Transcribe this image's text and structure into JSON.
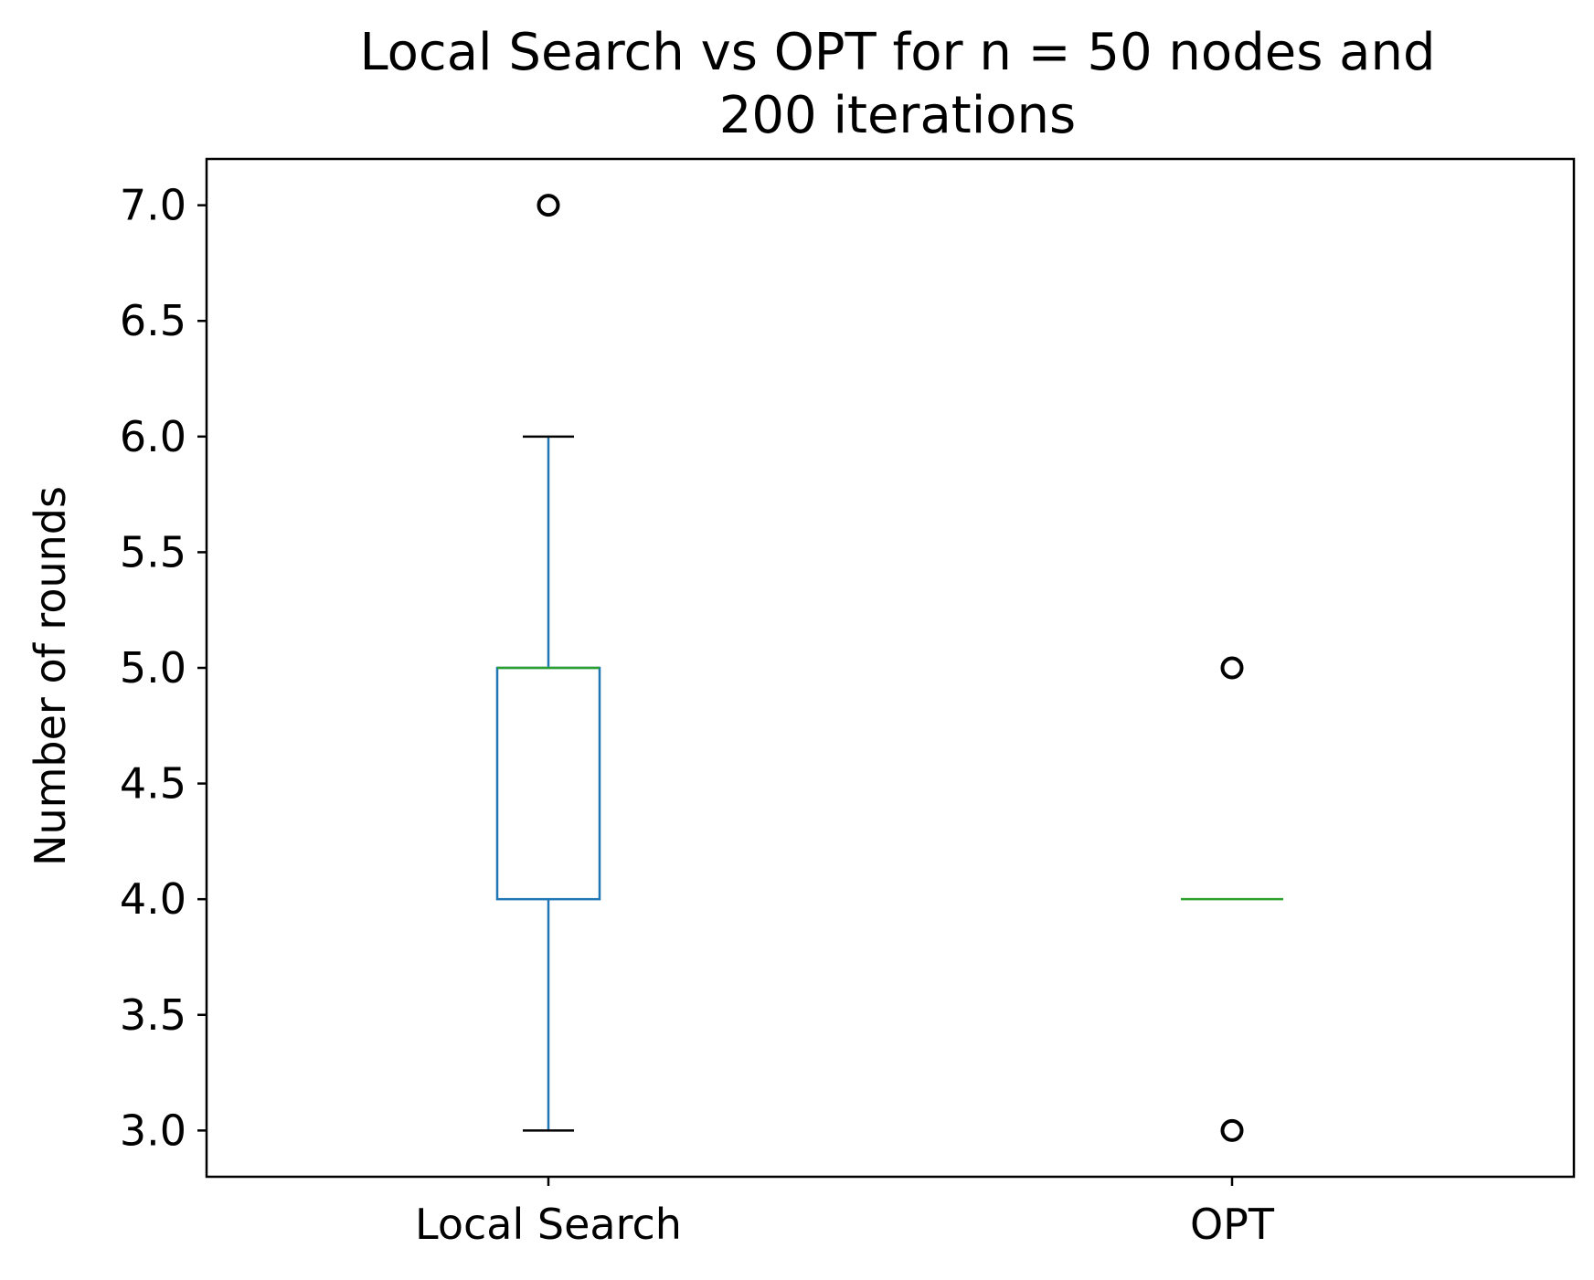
{
  "chart_data": {
    "type": "box",
    "title_lines": [
      "Local Search vs OPT for n = 50 nodes and",
      "200 iterations"
    ],
    "xlabel": "",
    "ylabel": "Number of rounds",
    "ylim": [
      2.8,
      7.2
    ],
    "yticks": [
      3.0,
      3.5,
      4.0,
      4.5,
      5.0,
      5.5,
      6.0,
      6.5,
      7.0
    ],
    "ytick_labels": [
      "3.0",
      "3.5",
      "4.0",
      "4.5",
      "5.0",
      "5.5",
      "6.0",
      "6.5",
      "7.0"
    ],
    "grid": false,
    "categories": [
      "Local Search",
      "OPT"
    ],
    "boxes": [
      {
        "label": "Local Search",
        "whisker_low": 3.0,
        "q1": 4.0,
        "median": 5.0,
        "q3": 5.0,
        "whisker_high": 6.0,
        "outliers": [
          7.0
        ]
      },
      {
        "label": "OPT",
        "whisker_low": 4.0,
        "q1": 4.0,
        "median": 4.0,
        "q3": 4.0,
        "whisker_high": 4.0,
        "outliers": [
          3.0,
          5.0
        ]
      }
    ],
    "colors": {
      "box": "#1f77b4",
      "median": "#2ca02c",
      "caps": "#000000",
      "outlier": "#000000",
      "frame": "#000000"
    }
  }
}
